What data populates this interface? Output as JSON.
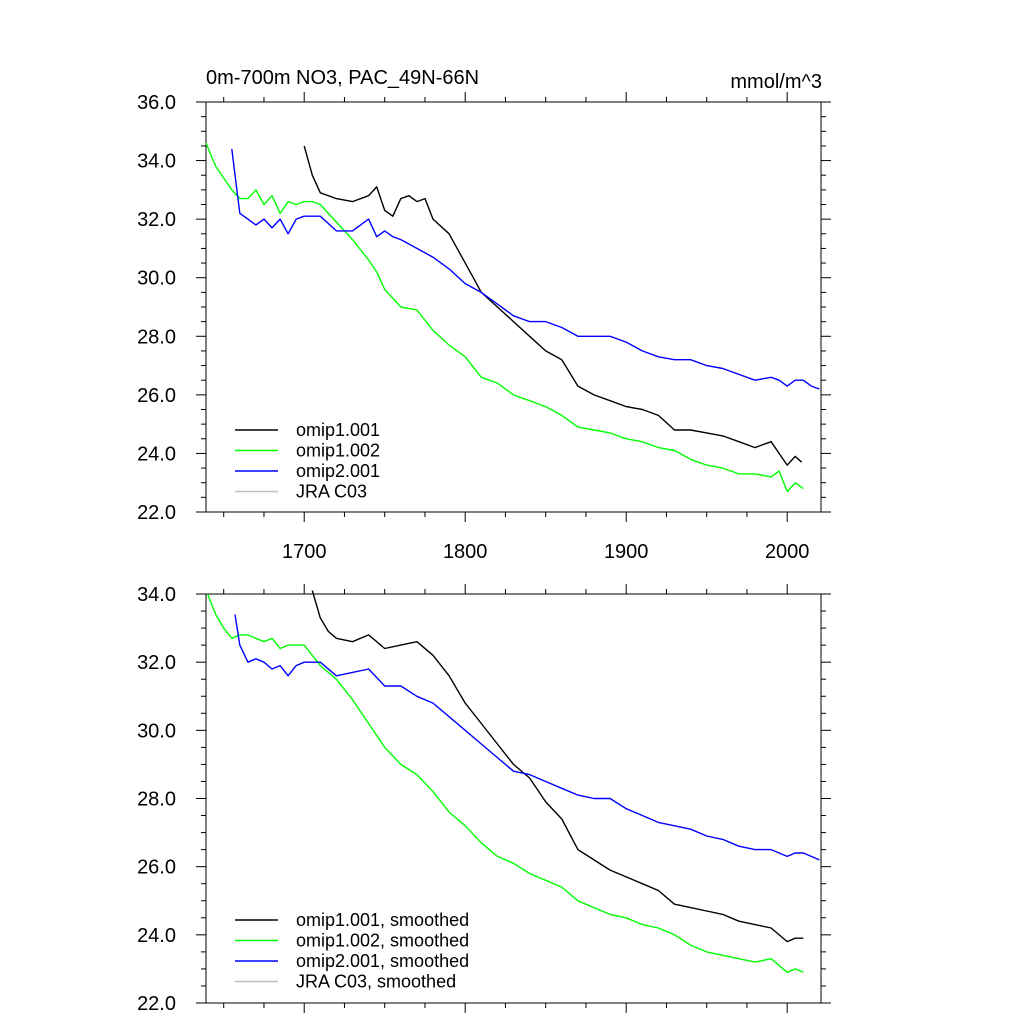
{
  "chart_data": [
    {
      "type": "line",
      "title_left": "0m-700m NO3, PAC_49N-66N",
      "title_right": "mmol/m^3",
      "xlim": [
        1639,
        2021
      ],
      "ylim": [
        22.0,
        36.0
      ],
      "x_ticks": [
        "1700",
        "1800",
        "1900",
        "2000"
      ],
      "y_ticks": [
        "22.0",
        "24.0",
        "26.0",
        "28.0",
        "30.0",
        "32.0",
        "34.0",
        "36.0"
      ],
      "legend_position": "bottom-left",
      "series": [
        {
          "name": "omip1.001",
          "color": "#000000",
          "x": [
            1700,
            1705,
            1710,
            1720,
            1730,
            1740,
            1745,
            1750,
            1755,
            1760,
            1765,
            1770,
            1775,
            1780,
            1790,
            1800,
            1805,
            1810,
            1820,
            1830,
            1840,
            1850,
            1860,
            1870,
            1880,
            1890,
            1900,
            1910,
            1920,
            1930,
            1940,
            1950,
            1960,
            1970,
            1980,
            1990,
            1995,
            2000,
            2005,
            2009
          ],
          "y": [
            34.5,
            33.5,
            32.9,
            32.7,
            32.6,
            32.8,
            33.1,
            32.3,
            32.1,
            32.7,
            32.8,
            32.6,
            32.7,
            32.0,
            31.5,
            30.5,
            30.0,
            29.5,
            29.0,
            28.5,
            28.0,
            27.5,
            27.2,
            26.3,
            26.0,
            25.8,
            25.6,
            25.5,
            25.3,
            24.8,
            24.8,
            24.7,
            24.6,
            24.4,
            24.2,
            24.4,
            24.0,
            23.6,
            23.9,
            23.7
          ]
        },
        {
          "name": "omip1.002",
          "color": "#00ff00",
          "x": [
            1639,
            1645,
            1650,
            1655,
            1660,
            1665,
            1670,
            1675,
            1680,
            1685,
            1690,
            1695,
            1700,
            1705,
            1710,
            1720,
            1730,
            1740,
            1745,
            1750,
            1760,
            1770,
            1780,
            1790,
            1800,
            1810,
            1820,
            1830,
            1840,
            1850,
            1860,
            1870,
            1880,
            1890,
            1900,
            1910,
            1920,
            1930,
            1940,
            1950,
            1960,
            1970,
            1980,
            1990,
            1995,
            2000,
            2005,
            2010
          ],
          "y": [
            34.6,
            33.8,
            33.4,
            33.0,
            32.7,
            32.7,
            33.0,
            32.5,
            32.8,
            32.2,
            32.6,
            32.5,
            32.6,
            32.6,
            32.5,
            31.9,
            31.3,
            30.6,
            30.2,
            29.6,
            29.0,
            28.9,
            28.2,
            27.7,
            27.3,
            26.6,
            26.4,
            26.0,
            25.8,
            25.6,
            25.3,
            24.9,
            24.8,
            24.7,
            24.5,
            24.4,
            24.2,
            24.1,
            23.8,
            23.6,
            23.5,
            23.3,
            23.3,
            23.2,
            23.4,
            22.7,
            23.0,
            22.8
          ]
        },
        {
          "name": "omip2.001",
          "color": "#0000ff",
          "x": [
            1655,
            1660,
            1665,
            1670,
            1675,
            1680,
            1685,
            1690,
            1695,
            1700,
            1710,
            1720,
            1730,
            1740,
            1745,
            1750,
            1755,
            1760,
            1770,
            1780,
            1790,
            1800,
            1810,
            1820,
            1830,
            1840,
            1850,
            1860,
            1870,
            1880,
            1890,
            1900,
            1910,
            1920,
            1930,
            1940,
            1950,
            1960,
            1970,
            1980,
            1990,
            1995,
            2000,
            2005,
            2010,
            2015,
            2020
          ],
          "y": [
            34.4,
            32.2,
            32.0,
            31.8,
            32.0,
            31.7,
            32.0,
            31.5,
            32.0,
            32.1,
            32.1,
            31.6,
            31.6,
            32.0,
            31.4,
            31.6,
            31.4,
            31.3,
            31.0,
            30.7,
            30.3,
            29.8,
            29.5,
            29.1,
            28.7,
            28.5,
            28.5,
            28.3,
            28.0,
            28.0,
            28.0,
            27.8,
            27.5,
            27.3,
            27.2,
            27.2,
            27.0,
            26.9,
            26.7,
            26.5,
            26.6,
            26.5,
            26.3,
            26.5,
            26.5,
            26.3,
            26.2
          ]
        },
        {
          "name": "JRA C03",
          "color": "#c0c0c0",
          "x": [],
          "y": []
        }
      ]
    },
    {
      "type": "line",
      "xlim": [
        1639,
        2021
      ],
      "ylim": [
        22.0,
        34.0
      ],
      "y_ticks": [
        "22.0",
        "24.0",
        "26.0",
        "28.0",
        "30.0",
        "32.0",
        "34.0"
      ],
      "legend_position": "bottom-left",
      "series": [
        {
          "name": "omip1.001, smoothed",
          "color": "#000000",
          "x": [
            1705,
            1710,
            1715,
            1720,
            1730,
            1740,
            1750,
            1760,
            1770,
            1780,
            1790,
            1800,
            1810,
            1820,
            1830,
            1840,
            1850,
            1860,
            1870,
            1880,
            1890,
            1900,
            1910,
            1920,
            1930,
            1940,
            1950,
            1960,
            1970,
            1980,
            1990,
            2000,
            2005,
            2010
          ],
          "y": [
            34.1,
            33.3,
            32.9,
            32.7,
            32.6,
            32.8,
            32.4,
            32.5,
            32.6,
            32.2,
            31.6,
            30.8,
            30.2,
            29.6,
            29.0,
            28.6,
            27.9,
            27.4,
            26.5,
            26.2,
            25.9,
            25.7,
            25.5,
            25.3,
            24.9,
            24.8,
            24.7,
            24.6,
            24.4,
            24.3,
            24.2,
            23.8,
            23.9,
            23.9
          ]
        },
        {
          "name": "omip1.002, smoothed",
          "color": "#00ff00",
          "x": [
            1640,
            1645,
            1650,
            1655,
            1660,
            1665,
            1670,
            1675,
            1680,
            1685,
            1690,
            1700,
            1710,
            1720,
            1730,
            1740,
            1750,
            1760,
            1770,
            1780,
            1790,
            1800,
            1810,
            1820,
            1830,
            1840,
            1850,
            1860,
            1870,
            1880,
            1890,
            1900,
            1910,
            1920,
            1930,
            1940,
            1950,
            1960,
            1970,
            1980,
            1990,
            2000,
            2005,
            2010
          ],
          "y": [
            34.0,
            33.4,
            33.0,
            32.7,
            32.8,
            32.8,
            32.7,
            32.6,
            32.7,
            32.4,
            32.5,
            32.5,
            31.9,
            31.5,
            30.9,
            30.2,
            29.5,
            29.0,
            28.7,
            28.2,
            27.6,
            27.2,
            26.7,
            26.3,
            26.1,
            25.8,
            25.6,
            25.4,
            25.0,
            24.8,
            24.6,
            24.5,
            24.3,
            24.2,
            24.0,
            23.7,
            23.5,
            23.4,
            23.3,
            23.2,
            23.3,
            22.9,
            23.0,
            22.9
          ]
        },
        {
          "name": "omip2.001, smoothed",
          "color": "#0000ff",
          "x": [
            1657,
            1660,
            1665,
            1670,
            1675,
            1680,
            1685,
            1690,
            1695,
            1700,
            1710,
            1720,
            1730,
            1740,
            1750,
            1760,
            1770,
            1780,
            1790,
            1800,
            1810,
            1820,
            1830,
            1840,
            1850,
            1860,
            1870,
            1880,
            1890,
            1900,
            1910,
            1920,
            1930,
            1940,
            1950,
            1960,
            1970,
            1980,
            1990,
            1995,
            2000,
            2005,
            2010,
            2015,
            2020
          ],
          "y": [
            33.4,
            32.5,
            32.0,
            32.1,
            32.0,
            31.8,
            31.9,
            31.6,
            31.9,
            32.0,
            32.0,
            31.6,
            31.7,
            31.8,
            31.3,
            31.3,
            31.0,
            30.8,
            30.4,
            30.0,
            29.6,
            29.2,
            28.8,
            28.7,
            28.5,
            28.3,
            28.1,
            28.0,
            28.0,
            27.7,
            27.5,
            27.3,
            27.2,
            27.1,
            26.9,
            26.8,
            26.6,
            26.5,
            26.5,
            26.4,
            26.3,
            26.4,
            26.4,
            26.3,
            26.2
          ]
        },
        {
          "name": "JRA C03, smoothed",
          "color": "#c0c0c0",
          "x": [],
          "y": []
        }
      ]
    }
  ]
}
